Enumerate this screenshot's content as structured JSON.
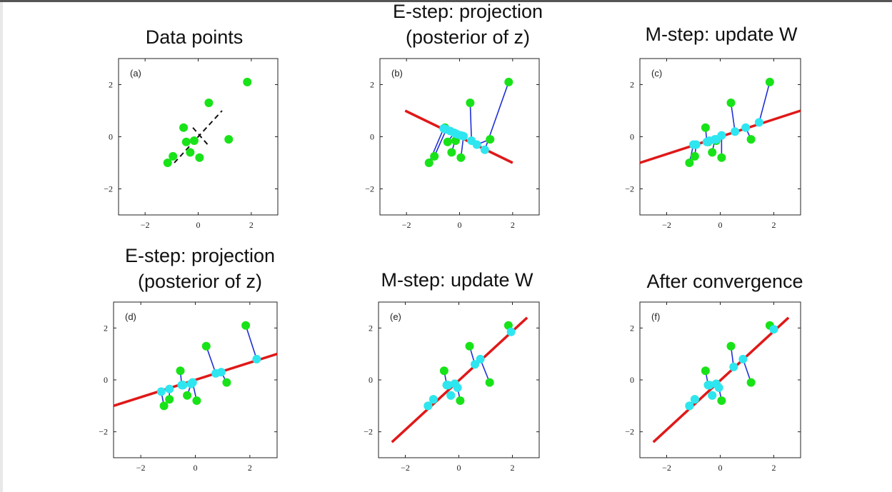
{
  "colors": {
    "point": "#18e318",
    "projection": "#2ee6f0",
    "connector": "#1f2fd6",
    "principal_line": "#e01818",
    "dashed_line": "#111111",
    "axes": "#222222"
  },
  "chart_data": [
    {
      "type": "scatter",
      "title_lines": [
        "Data points"
      ],
      "panel_label": "(a)",
      "xlim": [
        -3,
        3
      ],
      "ylim": [
        -3,
        3
      ],
      "xticks": [
        -2,
        0,
        2
      ],
      "yticks": [
        -2,
        0,
        2
      ],
      "points": {
        "x": [
          -1.15,
          -0.95,
          -0.55,
          -0.45,
          -0.3,
          -0.15,
          0.05,
          0.4,
          1.15,
          1.85
        ],
        "y": [
          -1.0,
          -0.75,
          0.35,
          -0.2,
          -0.6,
          -0.15,
          -0.8,
          1.3,
          -0.1,
          2.1
        ]
      },
      "dashed_line": {
        "x": [
          -0.9,
          0.9
        ],
        "y": [
          -1.0,
          1.0
        ]
      },
      "dashed_cross": {
        "x": [
          -0.2,
          0.4
        ],
        "y": [
          0.35,
          -0.35
        ]
      }
    },
    {
      "type": "scatter",
      "title_lines": [
        "E-step: projection",
        "(posterior of z)"
      ],
      "panel_label": "(b)",
      "xlim": [
        -3,
        3
      ],
      "ylim": [
        -3,
        3
      ],
      "xticks": [
        -2,
        0,
        2
      ],
      "yticks": [
        -2,
        0,
        2
      ],
      "points": {
        "x": [
          -1.15,
          -0.95,
          -0.55,
          -0.45,
          -0.3,
          -0.15,
          0.05,
          0.4,
          1.15,
          1.85
        ],
        "y": [
          -1.0,
          -0.75,
          0.35,
          -0.2,
          -0.6,
          -0.15,
          -0.8,
          1.3,
          -0.1,
          2.1
        ]
      },
      "projections": {
        "x": [
          -0.6,
          -0.5,
          -0.35,
          -0.2,
          -0.1,
          0.05,
          0.15,
          0.45,
          0.65,
          0.95
        ],
        "y": [
          0.32,
          0.28,
          0.22,
          0.15,
          0.1,
          0.05,
          0.02,
          -0.15,
          -0.3,
          -0.5
        ]
      },
      "principal_line": {
        "x": [
          -2.05,
          2.0
        ],
        "y": [
          1.0,
          -1.0
        ]
      }
    },
    {
      "type": "scatter",
      "title_lines": [
        "M-step: update W"
      ],
      "panel_label": "(c)",
      "xlim": [
        -3,
        3
      ],
      "ylim": [
        -3,
        3
      ],
      "xticks": [
        -2,
        0,
        2
      ],
      "yticks": [
        -2,
        0,
        2
      ],
      "points": {
        "x": [
          -1.15,
          -0.95,
          -0.55,
          -0.45,
          -0.3,
          -0.15,
          0.05,
          0.4,
          1.15,
          1.85
        ],
        "y": [
          -1.0,
          -0.75,
          0.35,
          -0.2,
          -0.6,
          -0.15,
          -0.8,
          1.3,
          -0.1,
          2.1
        ]
      },
      "projections": {
        "x": [
          -1.0,
          -0.9,
          -0.5,
          -0.4,
          -0.2,
          -0.15,
          0.05,
          0.55,
          0.95,
          1.45
        ],
        "y": [
          -0.3,
          -0.3,
          -0.2,
          -0.15,
          -0.1,
          -0.1,
          0.05,
          0.2,
          0.35,
          0.55
        ]
      },
      "principal_line": {
        "x": [
          -3.0,
          3.0
        ],
        "y": [
          -1.0,
          1.0
        ]
      }
    },
    {
      "type": "scatter",
      "title_lines": [
        "E-step: projection",
        "(posterior of z)"
      ],
      "panel_label": "(d)",
      "xlim": [
        -3,
        3
      ],
      "ylim": [
        -3,
        3
      ],
      "xticks": [
        -2,
        0,
        2
      ],
      "yticks": [
        -2,
        0,
        2
      ],
      "points": {
        "x": [
          -1.15,
          -0.95,
          -0.55,
          -0.45,
          -0.3,
          -0.15,
          0.05,
          0.4,
          1.15,
          1.85
        ],
        "y": [
          -1.0,
          -0.75,
          0.35,
          -0.2,
          -0.6,
          -0.15,
          -0.8,
          1.3,
          -0.1,
          2.1
        ]
      },
      "projections": {
        "x": [
          -1.25,
          -0.95,
          -0.5,
          -0.45,
          -0.15,
          -0.1,
          -0.1,
          0.75,
          0.95,
          2.25
        ],
        "y": [
          -0.45,
          -0.35,
          -0.2,
          -0.2,
          -0.15,
          -0.1,
          -0.1,
          0.25,
          0.3,
          0.8
        ]
      },
      "principal_line": {
        "x": [
          -3.0,
          3.0
        ],
        "y": [
          -1.0,
          1.0
        ]
      }
    },
    {
      "type": "scatter",
      "title_lines": [
        "M-step: update W"
      ],
      "panel_label": "(e)",
      "xlim": [
        -3,
        3
      ],
      "ylim": [
        -3,
        3
      ],
      "xticks": [
        -2,
        0,
        2
      ],
      "yticks": [
        -2,
        0,
        2
      ],
      "points": {
        "x": [
          -1.15,
          -0.95,
          -0.55,
          -0.45,
          -0.3,
          -0.15,
          0.05,
          0.4,
          1.15,
          1.85
        ],
        "y": [
          -1.0,
          -0.75,
          0.35,
          -0.2,
          -0.6,
          -0.15,
          -0.8,
          1.3,
          -0.1,
          2.1
        ]
      },
      "projections": {
        "x": [
          -1.15,
          -0.95,
          -0.45,
          -0.4,
          -0.3,
          -0.15,
          -0.05,
          0.6,
          0.8,
          1.95
        ],
        "y": [
          -1.0,
          -0.75,
          -0.2,
          -0.2,
          -0.6,
          -0.15,
          -0.3,
          0.6,
          0.8,
          1.85
        ]
      },
      "principal_line": {
        "x": [
          -2.5,
          2.55
        ],
        "y": [
          -2.4,
          2.4
        ]
      }
    },
    {
      "type": "scatter",
      "title_lines": [
        "After convergence"
      ],
      "panel_label": "(f)",
      "xlim": [
        -3,
        3
      ],
      "ylim": [
        -3,
        3
      ],
      "xticks": [
        -2,
        0,
        2
      ],
      "yticks": [
        -2,
        0,
        2
      ],
      "points": {
        "x": [
          -1.15,
          -0.95,
          -0.55,
          -0.45,
          -0.3,
          -0.15,
          0.05,
          0.4,
          1.15,
          1.85
        ],
        "y": [
          -1.0,
          -0.75,
          0.35,
          -0.2,
          -0.6,
          -0.15,
          -0.8,
          1.3,
          -0.1,
          2.1
        ]
      },
      "projections": {
        "x": [
          -1.15,
          -0.95,
          -0.45,
          -0.4,
          -0.3,
          -0.15,
          -0.05,
          0.5,
          0.85,
          2.0
        ],
        "y": [
          -1.0,
          -0.75,
          -0.2,
          -0.2,
          -0.6,
          -0.15,
          -0.3,
          0.5,
          0.8,
          1.95
        ]
      },
      "principal_line": {
        "x": [
          -2.5,
          2.55
        ],
        "y": [
          -2.4,
          2.4
        ]
      }
    }
  ]
}
